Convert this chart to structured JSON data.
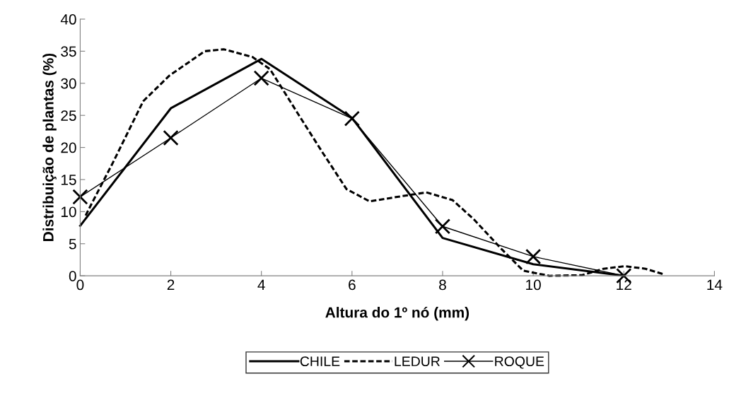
{
  "chart_data": {
    "type": "line",
    "xlabel": "Altura do 1º nó (mm)",
    "ylabel": "Distribuição de plantas (%)",
    "xlim": [
      0,
      14
    ],
    "xticks": [
      0,
      2,
      4,
      6,
      8,
      10,
      12,
      14
    ],
    "ylim": [
      0,
      40
    ],
    "yticks": [
      0,
      5,
      10,
      15,
      20,
      25,
      30,
      35,
      40
    ],
    "grid": false,
    "legend": "bottom",
    "series": [
      {
        "name": "CHILE",
        "color": "#000000",
        "line_style": "solid",
        "marker": "none",
        "x": [
          0,
          2,
          4,
          6,
          8,
          10,
          12
        ],
        "values": [
          7.8,
          26.1,
          33.8,
          24.6,
          5.9,
          1.8,
          0
        ]
      },
      {
        "name": "LEDUR",
        "color": "#000000",
        "line_style": "dotted",
        "marker": "none",
        "x": [
          0.12,
          0.25,
          0.72,
          1.39,
          1.97,
          2.75,
          3.17,
          3.8,
          4.19,
          4.83,
          5.36,
          5.88,
          6.39,
          7.0,
          7.64,
          8.22,
          8.69,
          9.31,
          9.78,
          10.36,
          11.08,
          11.55,
          12.02,
          12.48,
          12.9
        ],
        "values": [
          9.4,
          11.2,
          17.6,
          27.2,
          31.2,
          35.0,
          35.3,
          34.1,
          32.2,
          25.0,
          19.1,
          13.5,
          11.6,
          12.3,
          13.0,
          11.8,
          8.8,
          4.1,
          0.8,
          0,
          0.1,
          1.1,
          1.5,
          1.1,
          0.2
        ]
      },
      {
        "name": "ROQUE",
        "color": "#000000",
        "line_style": "solid",
        "marker": "cross",
        "x": [
          0,
          2,
          4,
          6,
          8,
          10,
          12
        ],
        "values": [
          12.3,
          21.5,
          30.8,
          24.5,
          7.7,
          3.0,
          0
        ]
      }
    ]
  }
}
